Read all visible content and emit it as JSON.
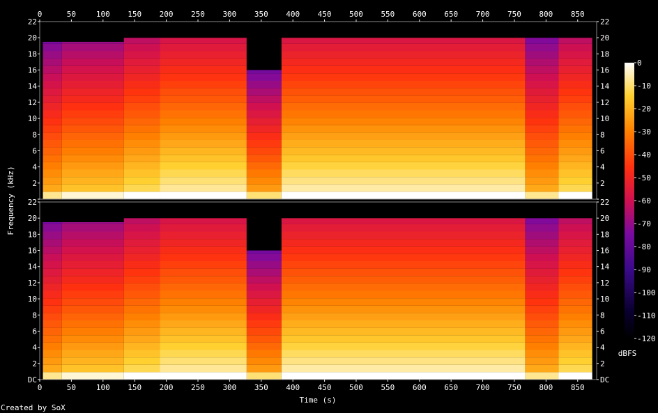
{
  "chart_data": {
    "type": "heatmap",
    "subtype": "spectrogram",
    "channels": 2,
    "xlabel": "Time (s)",
    "ylabel": "Frequency (kHz)",
    "x_ticks": [
      "0",
      "50",
      "100",
      "150",
      "200",
      "250",
      "300",
      "350",
      "400",
      "450",
      "500",
      "550",
      "600",
      "650",
      "700",
      "750",
      "800",
      "850"
    ],
    "y_ticks": [
      "DC",
      "2",
      "4",
      "6",
      "8",
      "10",
      "12",
      "14",
      "16",
      "18",
      "20",
      "22"
    ],
    "xlim": [
      0,
      880
    ],
    "ylim_khz": [
      0,
      22
    ],
    "colorbar": {
      "label": "dBFS",
      "range": [
        -120,
        0
      ],
      "ticks": [
        "0",
        "-10",
        "-20",
        "-30",
        "-40",
        "-50",
        "-60",
        "-70",
        "-80",
        "-90",
        "-100",
        "-110",
        "-120"
      ]
    },
    "segments": [
      {
        "start": 0,
        "end": 5,
        "cutoff_khz": 0,
        "level_db": -110
      },
      {
        "start": 5,
        "end": 35,
        "cutoff_khz": 19.5,
        "level_db": -60
      },
      {
        "start": 35,
        "end": 133,
        "cutoff_khz": 19.5,
        "level_db": -55
      },
      {
        "start": 133,
        "end": 190,
        "cutoff_khz": 20,
        "level_db": -50
      },
      {
        "start": 190,
        "end": 327,
        "cutoff_khz": 20,
        "level_db": -45
      },
      {
        "start": 327,
        "end": 382,
        "cutoff_khz": 16,
        "level_db": -62
      },
      {
        "start": 382,
        "end": 767,
        "cutoff_khz": 20,
        "level_db": -44
      },
      {
        "start": 767,
        "end": 820,
        "cutoff_khz": 20,
        "level_db": -60
      },
      {
        "start": 820,
        "end": 873,
        "cutoff_khz": 20,
        "level_db": -50
      },
      {
        "start": 873,
        "end": 880,
        "cutoff_khz": 0,
        "level_db": -110
      }
    ],
    "credit": "Created by SoX"
  }
}
